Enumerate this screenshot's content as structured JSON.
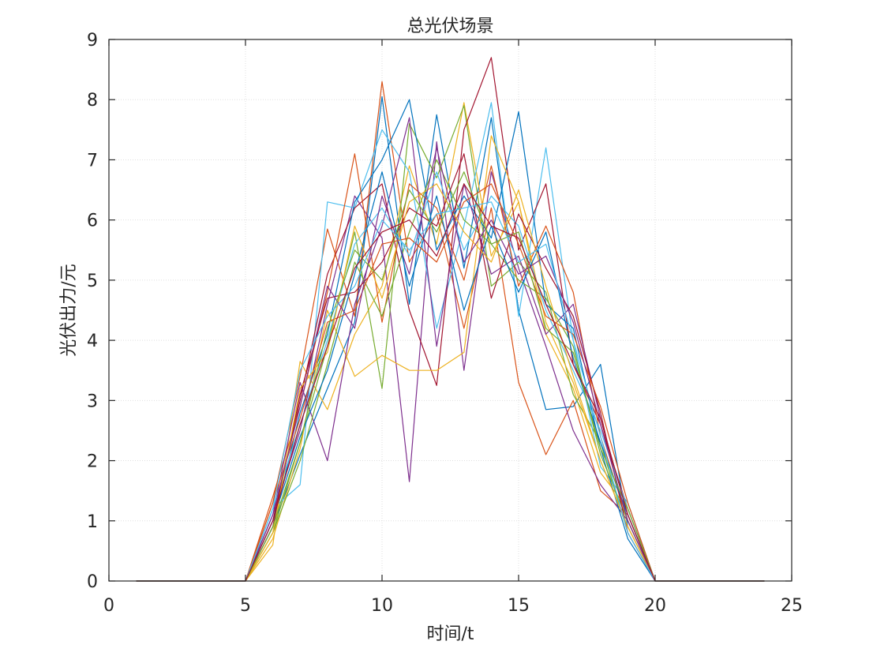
{
  "chart_data": {
    "type": "line",
    "title": "总光伏场景",
    "xlabel": "时间/t",
    "ylabel": "光伏出力/元",
    "xlim": [
      0,
      25
    ],
    "ylim": [
      0,
      9
    ],
    "xticks": [
      0,
      5,
      10,
      15,
      20,
      25
    ],
    "yticks": [
      0,
      1,
      2,
      3,
      4,
      5,
      6,
      7,
      8,
      9
    ],
    "xtick_labels": [
      "0",
      "5",
      "10",
      "15",
      "20",
      "25"
    ],
    "ytick_labels": [
      "0",
      "1",
      "2",
      "3",
      "4",
      "5",
      "6",
      "7",
      "8",
      "9"
    ],
    "grid": true,
    "legend": "none",
    "x": [
      1,
      2,
      3,
      4,
      5,
      6,
      7,
      8,
      9,
      10,
      11,
      12,
      13,
      14,
      15,
      16,
      17,
      18,
      19,
      20,
      21,
      22,
      23,
      24
    ],
    "colors": [
      "#0072BD",
      "#D95319",
      "#EDB120",
      "#7E2F8E",
      "#77AC30",
      "#4DBEEE",
      "#A2142F"
    ],
    "series": [
      {
        "values": [
          0,
          0,
          0,
          0,
          0,
          0.9,
          2.1,
          3.2,
          4.3,
          8.05,
          4.6,
          7.75,
          5.2,
          7.7,
          4.5,
          2.85,
          2.9,
          3.6,
          0.9,
          0,
          0,
          0,
          0,
          0
        ]
      },
      {
        "values": [
          0,
          0,
          0,
          0,
          0,
          1.3,
          3.4,
          5.85,
          4.4,
          8.3,
          5.3,
          6.1,
          4.2,
          6.2,
          3.3,
          2.1,
          3.0,
          1.5,
          1.1,
          0,
          0,
          0,
          0,
          0
        ]
      },
      {
        "values": [
          0,
          0,
          0,
          0,
          0,
          0.6,
          3.65,
          2.85,
          4.1,
          4.9,
          6.9,
          5.6,
          7.95,
          5.4,
          6.3,
          4.1,
          3.2,
          1.8,
          1.2,
          0,
          0,
          0,
          0,
          0
        ]
      },
      {
        "values": [
          0,
          0,
          0,
          0,
          0,
          1.1,
          2.5,
          4.6,
          6.4,
          5.7,
          1.65,
          7.3,
          3.5,
          6.8,
          5.2,
          3.9,
          2.5,
          1.6,
          1.0,
          0,
          0,
          0,
          0,
          0
        ]
      },
      {
        "values": [
          0,
          0,
          0,
          0,
          0,
          0.8,
          2.3,
          3.9,
          5.8,
          3.2,
          7.6,
          6.7,
          7.9,
          4.9,
          5.3,
          4.8,
          3.1,
          2.3,
          0.8,
          0,
          0,
          0,
          0,
          0
        ]
      },
      {
        "values": [
          0,
          0,
          0,
          0,
          0,
          1.2,
          1.6,
          6.3,
          6.2,
          7.5,
          6.8,
          4.2,
          5.9,
          7.95,
          4.4,
          7.2,
          4.0,
          1.9,
          1.3,
          0,
          0,
          0,
          0,
          0
        ]
      },
      {
        "values": [
          0,
          0,
          0,
          0,
          0,
          1.0,
          3.0,
          5.1,
          6.2,
          6.6,
          4.5,
          3.25,
          7.5,
          8.7,
          5.5,
          6.6,
          3.6,
          2.6,
          1.2,
          0,
          0,
          0,
          0,
          0
        ]
      },
      {
        "values": [
          0,
          0,
          0,
          0,
          0,
          0.9,
          2.8,
          4.1,
          6.3,
          7.0,
          8.0,
          5.5,
          6.4,
          5.7,
          7.8,
          4.6,
          4.2,
          2.2,
          0.7,
          0,
          0,
          0,
          0,
          0
        ]
      },
      {
        "values": [
          0,
          0,
          0,
          0,
          0,
          1.4,
          2.9,
          4.8,
          7.1,
          4.3,
          6.6,
          6.2,
          5.0,
          6.9,
          4.9,
          5.9,
          4.8,
          2.4,
          1.0,
          0,
          0,
          0,
          0,
          0
        ]
      },
      {
        "values": [
          0,
          0,
          0,
          0,
          0,
          0.7,
          2.2,
          4.5,
          3.4,
          3.75,
          3.5,
          3.5,
          3.8,
          7.4,
          6.3,
          4.3,
          3.3,
          2.0,
          0.9,
          0,
          0,
          0,
          0,
          0
        ]
      },
      {
        "values": [
          0,
          0,
          0,
          0,
          0,
          1.1,
          3.3,
          2.0,
          4.6,
          5.9,
          7.7,
          3.9,
          6.6,
          5.1,
          5.4,
          4.1,
          4.6,
          2.7,
          1.1,
          0,
          0,
          0,
          0,
          0
        ]
      },
      {
        "values": [
          0,
          0,
          0,
          0,
          0,
          0.8,
          2.0,
          3.6,
          5.3,
          4.4,
          5.8,
          7.0,
          6.0,
          5.6,
          5.0,
          4.7,
          3.9,
          2.1,
          1.0,
          0,
          0,
          0,
          0,
          0
        ]
      },
      {
        "values": [
          0,
          0,
          0,
          0,
          0,
          1.2,
          2.6,
          4.0,
          5.6,
          6.2,
          5.4,
          6.8,
          5.5,
          6.4,
          5.9,
          4.5,
          3.5,
          2.5,
          1.2,
          0,
          0,
          0,
          0,
          0
        ]
      },
      {
        "values": [
          0,
          0,
          0,
          0,
          0,
          0.9,
          3.1,
          4.7,
          4.8,
          5.3,
          6.2,
          5.9,
          7.1,
          4.7,
          6.1,
          5.2,
          4.4,
          2.8,
          0.8,
          0,
          0,
          0,
          0,
          0
        ]
      },
      {
        "values": [
          0,
          0,
          0,
          0,
          0,
          1.0,
          2.4,
          3.5,
          5.1,
          6.8,
          4.9,
          6.4,
          4.5,
          5.9,
          4.8,
          5.8,
          3.7,
          2.3,
          1.1,
          0,
          0,
          0,
          0,
          0
        ]
      },
      {
        "values": [
          0,
          0,
          0,
          0,
          0,
          1.3,
          2.7,
          4.3,
          4.5,
          5.6,
          5.7,
          5.3,
          6.3,
          6.6,
          5.6,
          4.4,
          4.1,
          2.9,
          1.3,
          0,
          0,
          0,
          0,
          0
        ]
      },
      {
        "values": [
          0,
          0,
          0,
          0,
          0,
          0.8,
          3.2,
          3.8,
          5.9,
          4.7,
          6.3,
          6.6,
          5.8,
          5.3,
          6.5,
          4.9,
          3.4,
          2.0,
          0.9,
          0,
          0,
          0,
          0,
          0
        ]
      },
      {
        "values": [
          0,
          0,
          0,
          0,
          0,
          1.1,
          2.9,
          4.9,
          4.2,
          6.4,
          5.1,
          7.2,
          5.3,
          6.0,
          5.1,
          5.4,
          4.3,
          2.6,
          1.0,
          0,
          0,
          0,
          0,
          0
        ]
      },
      {
        "values": [
          0,
          0,
          0,
          0,
          0,
          0.9,
          2.3,
          4.2,
          5.5,
          5.0,
          6.5,
          5.8,
          6.8,
          5.6,
          5.8,
          4.2,
          3.8,
          2.2,
          1.2,
          0,
          0,
          0,
          0,
          0
        ]
      },
      {
        "values": [
          0,
          0,
          0,
          0,
          0,
          1.2,
          3.5,
          4.4,
          4.9,
          6.0,
          5.5,
          6.1,
          6.2,
          6.3,
          5.3,
          5.6,
          4.0,
          2.4,
          0.8,
          0,
          0,
          0,
          0,
          0
        ]
      },
      {
        "values": [
          0,
          0,
          0,
          0,
          0,
          1.0,
          2.6,
          3.9,
          5.2,
          5.8,
          6.0,
          5.4,
          6.6,
          5.9,
          5.7,
          4.6,
          3.6,
          2.7,
          1.1,
          0,
          0,
          0,
          0,
          0
        ]
      }
    ]
  }
}
